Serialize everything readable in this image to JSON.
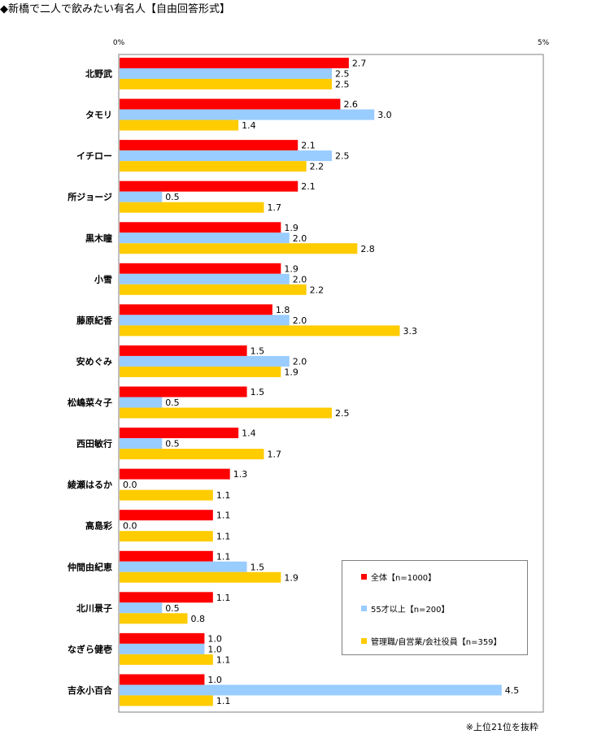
{
  "title": "◆新橋で二人で飲みたい有名人【自由回答形式】",
  "footnote": "※上位21位を抜粋",
  "chart_data": {
    "type": "bar",
    "orientation": "horizontal",
    "title": "◆新橋で二人で飲みたい有名人【自由回答形式】",
    "xlim": [
      0,
      5
    ],
    "xticks": [
      "0%",
      "5%"
    ],
    "grid": false,
    "legend_position": "bottom-right",
    "categories": [
      "北野武",
      "タモリ",
      "イチロー",
      "所ジョージ",
      "黒木瞳",
      "小雪",
      "藤原紀香",
      "安めぐみ",
      "松嶋菜々子",
      "西田敏行",
      "綾瀬はるか",
      "高島彩",
      "仲間由紀恵",
      "北川景子",
      "なぎら健壱",
      "吉永小百合"
    ],
    "series": [
      {
        "name": "全体【n=1000】",
        "color": "#ff0000",
        "values": [
          2.7,
          2.6,
          2.1,
          2.1,
          1.9,
          1.9,
          1.8,
          1.5,
          1.5,
          1.4,
          1.3,
          1.1,
          1.1,
          1.1,
          1.0,
          1.0
        ]
      },
      {
        "name": "55才以上【n=200】",
        "color": "#99ccff",
        "values": [
          2.5,
          3.0,
          2.5,
          0.5,
          2.0,
          2.0,
          2.0,
          2.0,
          0.5,
          0.5,
          0.0,
          0.0,
          1.5,
          0.5,
          1.0,
          4.5
        ]
      },
      {
        "name": "管理職/自営業/会社役員【n=359】",
        "color": "#ffcc00",
        "values": [
          2.5,
          1.4,
          2.2,
          1.7,
          2.8,
          2.2,
          3.3,
          1.9,
          2.5,
          1.7,
          1.1,
          1.1,
          1.9,
          0.8,
          1.1,
          1.1
        ]
      }
    ]
  }
}
